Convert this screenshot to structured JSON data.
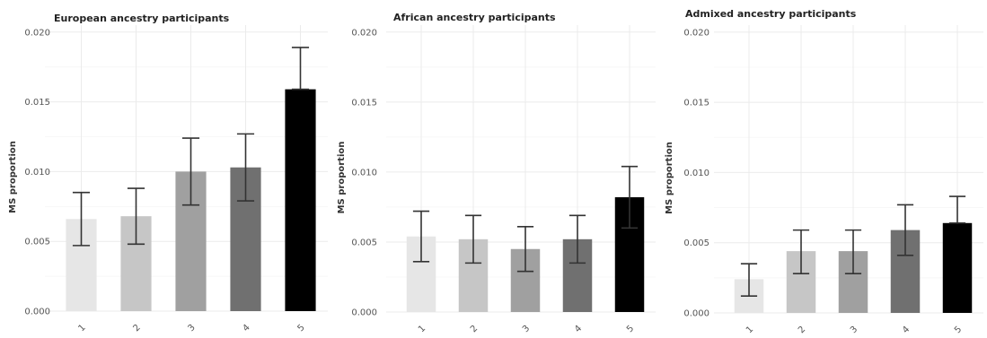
{
  "chart_data": [
    {
      "type": "bar",
      "title": "European ancestry participants",
      "ylabel": "MS proportion",
      "xlabel": "",
      "categories": [
        "1",
        "2",
        "3",
        "4",
        "5"
      ],
      "values": [
        0.0066,
        0.0068,
        0.01,
        0.0103,
        0.0159
      ],
      "error_low": [
        0.0047,
        0.0048,
        0.0076,
        0.0079,
        0.0159
      ],
      "error_high": [
        0.0085,
        0.0088,
        0.0124,
        0.0127,
        0.0189
      ],
      "ylim": [
        0,
        0.0205
      ],
      "yticks": [
        "0.000",
        "0.005",
        "0.010",
        "0.015",
        "0.020"
      ],
      "colors": [
        "#e6e6e6",
        "#c6c6c6",
        "#a0a0a0",
        "#707070",
        "#000000"
      ],
      "grid": true,
      "legend": "none"
    },
    {
      "type": "bar",
      "title": "African ancestry participants",
      "ylabel": "MS proportion",
      "xlabel": "",
      "categories": [
        "1",
        "2",
        "3",
        "4",
        "5"
      ],
      "values": [
        0.0054,
        0.0052,
        0.0045,
        0.0052,
        0.0082
      ],
      "error_low": [
        0.0036,
        0.0035,
        0.0029,
        0.0035,
        0.006
      ],
      "error_high": [
        0.0072,
        0.0069,
        0.0061,
        0.0069,
        0.0104
      ],
      "ylim": [
        0,
        0.0205
      ],
      "yticks": [
        "0.000",
        "0.005",
        "0.010",
        "0.015",
        "0.020"
      ],
      "colors": [
        "#e6e6e6",
        "#c6c6c6",
        "#a0a0a0",
        "#707070",
        "#000000"
      ],
      "grid": true,
      "legend": "none"
    },
    {
      "type": "bar",
      "title": "Admixed ancestry participants",
      "ylabel": "MS proportion",
      "xlabel": "",
      "categories": [
        "1",
        "2",
        "3",
        "4",
        "5"
      ],
      "values": [
        0.0024,
        0.0044,
        0.0044,
        0.0059,
        0.0064
      ],
      "error_low": [
        0.0012,
        0.0028,
        0.0028,
        0.0041,
        0.0064
      ],
      "error_high": [
        0.0035,
        0.0059,
        0.0059,
        0.0077,
        0.0083
      ],
      "ylim": [
        0,
        0.0205
      ],
      "yticks": [
        "0.000",
        "0.005",
        "0.010",
        "0.015",
        "0.020"
      ],
      "colors": [
        "#e6e6e6",
        "#c6c6c6",
        "#a0a0a0",
        "#707070",
        "#000000"
      ],
      "grid": true,
      "legend": "none"
    }
  ]
}
